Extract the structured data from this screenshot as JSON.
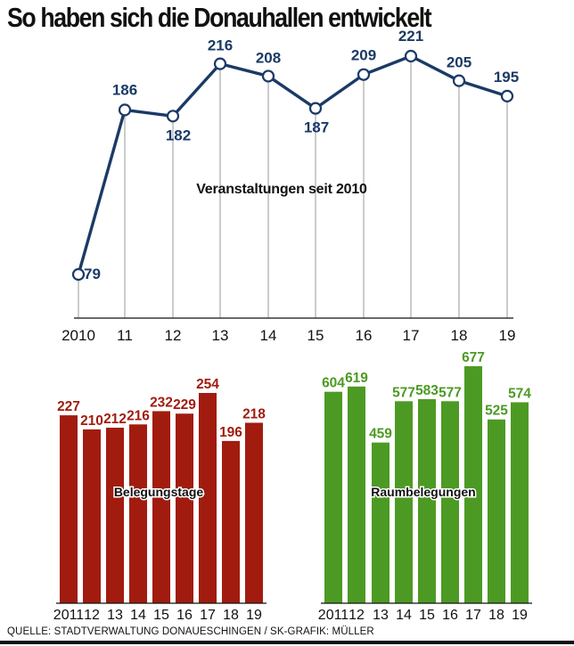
{
  "title": "So haben sich die Donauhallen entwickelt",
  "source": "QUELLE: STADTVERWALTUNG DONAUESCHINGEN / SK-GRAFIK: MÜLLER",
  "colors": {
    "line": "#1b3a66",
    "belegung": "#a11c0f",
    "raum": "#4c9a23",
    "axis": "#111111",
    "grid": "#9a9a9a"
  },
  "chart_data": [
    {
      "type": "line",
      "label": "Veranstaltungen seit 2010",
      "categories": [
        "2010",
        "11",
        "12",
        "13",
        "14",
        "15",
        "16",
        "17",
        "18",
        "19"
      ],
      "values": [
        79,
        186,
        182,
        216,
        208,
        187,
        209,
        221,
        205,
        195
      ],
      "value_labels": [
        "79",
        "186",
        "182",
        "216",
        "208",
        "187",
        "209",
        "221",
        "205",
        "195"
      ],
      "grid": "vertical drop lines"
    },
    {
      "type": "bar",
      "label": "Belegungstage",
      "categories": [
        "2011",
        "12",
        "13",
        "14",
        "15",
        "16",
        "17",
        "18",
        "19"
      ],
      "values": [
        227,
        210,
        212,
        216,
        232,
        229,
        254,
        196,
        218
      ],
      "value_labels": [
        "227",
        "210",
        "212",
        "216",
        "232",
        "229",
        "254",
        "196",
        "218"
      ],
      "color": "#a11c0f"
    },
    {
      "type": "bar",
      "label": "Raumbelegungen",
      "categories": [
        "2011",
        "12",
        "13",
        "14",
        "15",
        "16",
        "17",
        "18",
        "19"
      ],
      "values": [
        604,
        619,
        459,
        577,
        583,
        577,
        677,
        525,
        574
      ],
      "value_labels": [
        "604",
        "619",
        "459",
        "577",
        "583",
        "577",
        "677",
        "525",
        "574"
      ],
      "color": "#4c9a23"
    }
  ]
}
